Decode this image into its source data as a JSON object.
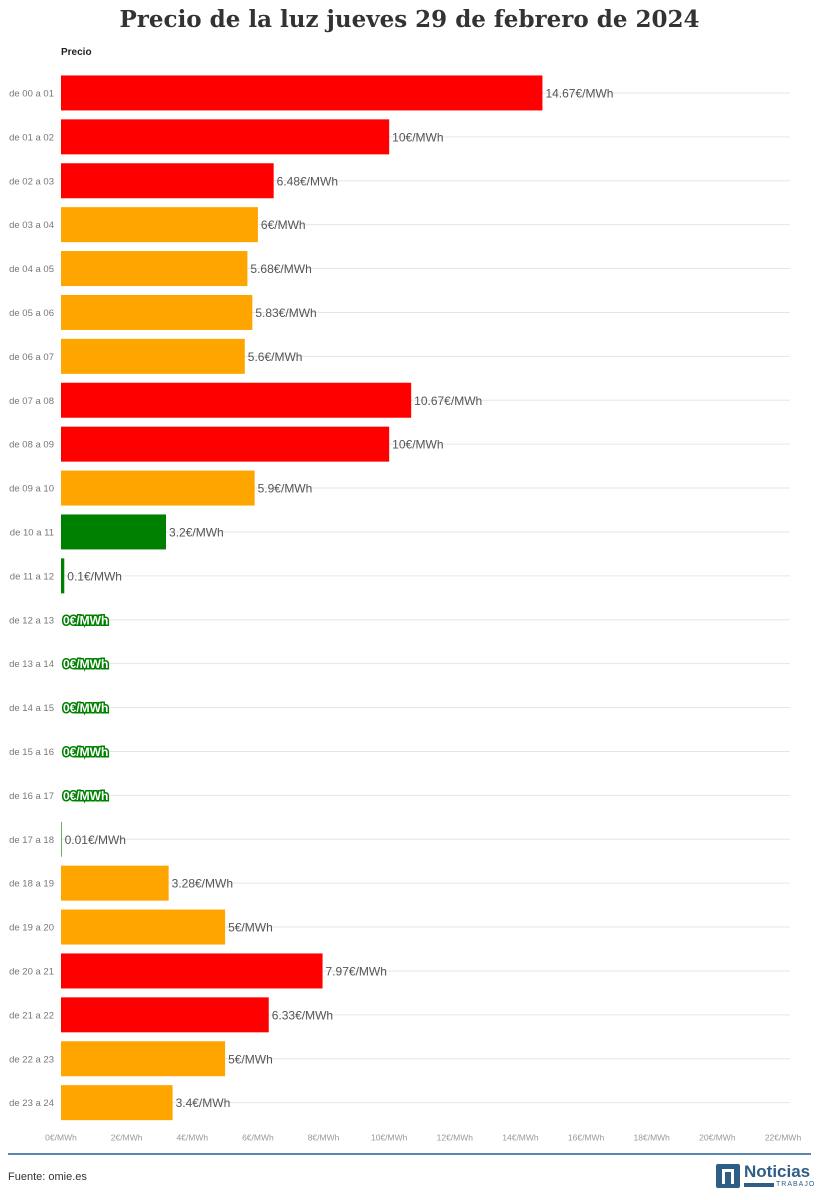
{
  "title": "Precio de la luz jueves 29 de febrero de 2024",
  "column_label": "Precio",
  "source": "Fuente: omie.es",
  "logo": {
    "name": "Noticias",
    "sub": "TRABAJO",
    "icon": "noticias-trabajo-logo-icon",
    "color": "#2e5d86"
  },
  "colors": {
    "red": "#ff0000",
    "orange": "#ffa500",
    "green": "#008000",
    "zero_label_bg": "#008000",
    "zero_label_text": "#ffffff"
  },
  "chart_data": {
    "type": "bar",
    "orientation": "horizontal",
    "title": "Precio de la luz jueves 29 de febrero de 2024",
    "xlim": [
      0,
      22
    ],
    "ticks": [
      "0€/MWh",
      "2€/MWh",
      "4€/MWh",
      "6€/MWh",
      "8€/MWh",
      "10€/MWh",
      "12€/MWh",
      "14€/MWh",
      "16€/MWh",
      "18€/MWh",
      "20€/MWh",
      "22€/MWh"
    ],
    "grid": true,
    "categories": [
      "de 00 a 01",
      "de 01 a 02",
      "de 02 a 03",
      "de 03 a 04",
      "de 04 a 05",
      "de 05 a 06",
      "de 06 a 07",
      "de 07 a 08",
      "de 08 a 09",
      "de 09 a 10",
      "de 10 a 11",
      "de 11 a 12",
      "de 12 a 13",
      "de 13 a 14",
      "de 14 a 15",
      "de 15 a 16",
      "de 16 a 17",
      "de 17 a 18",
      "de 18 a 19",
      "de 19 a 20",
      "de 20 a 21",
      "de 21 a 22",
      "de 22 a 23",
      "de 23 a 24"
    ],
    "values": [
      14.67,
      10,
      6.48,
      6,
      5.68,
      5.83,
      5.6,
      10.67,
      10,
      5.9,
      3.2,
      0.1,
      0,
      0,
      0,
      0,
      0,
      0.01,
      3.28,
      5,
      7.97,
      6.33,
      5,
      3.4
    ],
    "labels": [
      "14.67€/MWh",
      "10€/MWh",
      "6.48€/MWh",
      "6€/MWh",
      "5.68€/MWh",
      "5.83€/MWh",
      "5.6€/MWh",
      "10.67€/MWh",
      "10€/MWh",
      "5.9€/MWh",
      "3.2€/MWh",
      "0.1€/MWh",
      "0€/MWh",
      "0€/MWh",
      "0€/MWh",
      "0€/MWh",
      "0€/MWh",
      "0.01€/MWh",
      "3.28€/MWh",
      "5€/MWh",
      "7.97€/MWh",
      "6.33€/MWh",
      "5€/MWh",
      "3.4€/MWh"
    ],
    "bar_colors": [
      "red",
      "red",
      "red",
      "orange",
      "orange",
      "orange",
      "orange",
      "red",
      "red",
      "orange",
      "green",
      "green",
      "green",
      "green",
      "green",
      "green",
      "green",
      "green",
      "orange",
      "orange",
      "red",
      "red",
      "orange",
      "orange"
    ]
  }
}
